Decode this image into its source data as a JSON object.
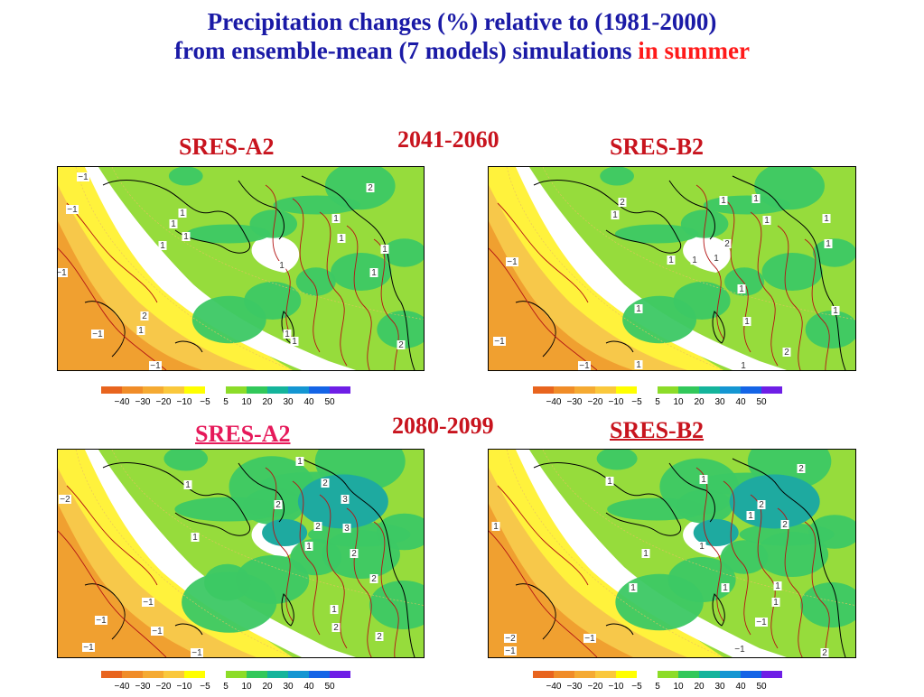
{
  "title": {
    "line1": "Precipitation changes (%) relative to (1981-2000)",
    "line2_main": "from ensemble-mean (7 models) simulations ",
    "line2_accent": "in summer"
  },
  "periods": [
    "2041-2060",
    "2080-2099"
  ],
  "panels": [
    {
      "scenario": "SRES-A2",
      "period_index": 0,
      "contour_labels": [
        "−1",
        "−1",
        "1",
        "1",
        "1",
        "1",
        "2",
        "1",
        "1",
        "1",
        "1",
        "1",
        "−1",
        "2",
        "1",
        "−1",
        "1",
        "1",
        "−1",
        "2"
      ]
    },
    {
      "scenario": "SRES-B2",
      "period_index": 0,
      "contour_labels": [
        "2",
        "1",
        "1",
        "1",
        "1",
        "1",
        "1",
        "2",
        "1",
        "1",
        "1",
        "−1",
        "1",
        "1",
        "1",
        "1",
        "2",
        "1",
        "−1",
        "−1",
        "1"
      ]
    },
    {
      "scenario": "SRES-A2",
      "period_index": 1,
      "contour_labels": [
        "1",
        "2",
        "3",
        "2",
        "2",
        "3",
        "2",
        "1",
        "1",
        "2",
        "1",
        "1",
        "−2",
        "−1",
        "−1",
        "−1",
        "−1",
        "2",
        "2",
        "−1"
      ]
    },
    {
      "scenario": "SRES-B2",
      "period_index": 1,
      "contour_labels": [
        "2",
        "1",
        "1",
        "2",
        "1",
        "2",
        "1",
        "1",
        "1",
        "1",
        "1",
        "1",
        "1",
        "−1",
        "−2",
        "−1",
        "−1",
        "2",
        "−1"
      ]
    }
  ],
  "colorbar": {
    "tick_labels": [
      "−40",
      "−30",
      "−20",
      "−10",
      "−5",
      "5",
      "10",
      "20",
      "30",
      "40",
      "50"
    ],
    "colors": [
      "#e8641e",
      "#f08c28",
      "#f5aa32",
      "#fac83c",
      "#ffff00",
      "#ffffff",
      "#8cdc28",
      "#32c85a",
      "#14b49b",
      "#1496d2",
      "#1464e6",
      "#6e1ee6"
    ]
  },
  "field_colors": {
    "dry_strong": "#f0a030",
    "dry": "#f7c84a",
    "dry_light": "#fff23c",
    "neutral": "#ffffff",
    "wet_light": "#96dc3c",
    "wet": "#3cc864",
    "wet_strong": "#1eaaa0",
    "contour": "#b41414",
    "coast": "#000000"
  }
}
